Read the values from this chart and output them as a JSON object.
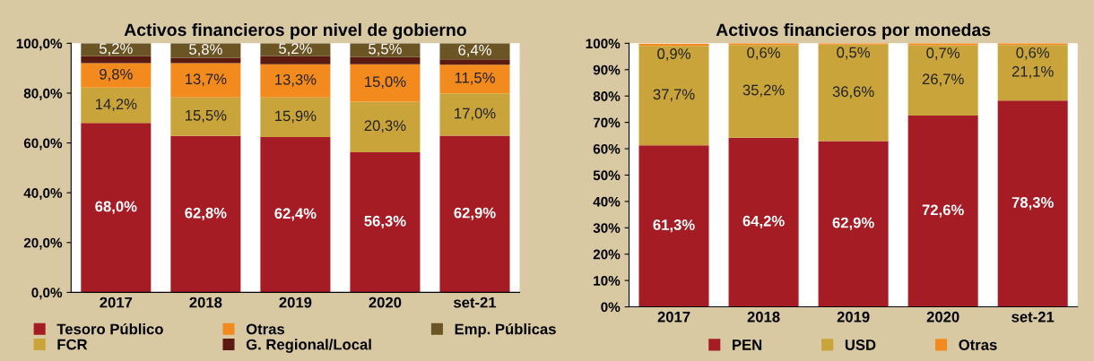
{
  "chart_data": [
    {
      "type": "bar",
      "title": "Activos financieros por nivel de gobierno",
      "stacked": true,
      "categories": [
        "2017",
        "2018",
        "2019",
        "2020",
        "set-21"
      ],
      "ylim": [
        0,
        100
      ],
      "yticks": [
        {
          "value": 0,
          "label": "0,0%"
        },
        {
          "value": 20,
          "label": "20,0%"
        },
        {
          "value": 40,
          "label": "40,0%"
        },
        {
          "value": 60,
          "label": "60,0%"
        },
        {
          "value": 80,
          "label": "80,0%"
        },
        {
          "value": 100,
          "label": "100,0%"
        }
      ],
      "grid": false,
      "legend": "bottom",
      "series": [
        {
          "name": "Tesoro Público",
          "color": "#a51c24",
          "values": [
            68.0,
            62.8,
            62.4,
            56.3,
            62.9
          ],
          "value_labels": [
            "68,0%",
            "62,8%",
            "62,4%",
            "56,3%",
            "62,9%"
          ]
        },
        {
          "name": "FCR",
          "color": "#c9a43a",
          "values": [
            14.2,
            15.5,
            15.9,
            20.3,
            17.0
          ],
          "value_labels": [
            "14,2%",
            "15,5%",
            "15,9%",
            "20,3%",
            "17,0%"
          ]
        },
        {
          "name": "Otras",
          "color": "#f28a1e",
          "values": [
            9.8,
            13.7,
            13.3,
            15.0,
            11.5
          ],
          "value_labels": [
            "9,8%",
            "13,7%",
            "13,3%",
            "15,0%",
            "11,5%"
          ]
        },
        {
          "name": "G. Regional/Local",
          "color": "#5a1a10",
          "values": [
            2.8,
            2.2,
            3.2,
            2.9,
            2.2
          ],
          "value_labels": [
            null,
            null,
            null,
            null,
            null
          ]
        },
        {
          "name": "Emp. Públicas",
          "color": "#6b5524",
          "values": [
            5.2,
            5.8,
            5.2,
            5.5,
            6.4
          ],
          "value_labels": [
            "5,2%",
            "5,8%",
            "5,2%",
            "5,5%",
            "6,4%"
          ]
        }
      ]
    },
    {
      "type": "bar",
      "title": "Activos financieros por monedas",
      "stacked": true,
      "categories": [
        "2017",
        "2018",
        "2019",
        "2020",
        "set-21"
      ],
      "ylim": [
        0,
        100
      ],
      "yticks": [
        {
          "value": 0,
          "label": "0%"
        },
        {
          "value": 10,
          "label": "10%"
        },
        {
          "value": 20,
          "label": "20%"
        },
        {
          "value": 30,
          "label": "30%"
        },
        {
          "value": 40,
          "label": "40%"
        },
        {
          "value": 50,
          "label": "50%"
        },
        {
          "value": 60,
          "label": "60%"
        },
        {
          "value": 70,
          "label": "70%"
        },
        {
          "value": 80,
          "label": "80%"
        },
        {
          "value": 90,
          "label": "90%"
        },
        {
          "value": 100,
          "label": "100%"
        }
      ],
      "grid": false,
      "legend": "bottom",
      "series": [
        {
          "name": "PEN",
          "color": "#a51c24",
          "values": [
            61.3,
            64.2,
            62.9,
            72.6,
            78.3
          ],
          "value_labels": [
            "61,3%",
            "64,2%",
            "62,9%",
            "72,6%",
            "78,3%"
          ]
        },
        {
          "name": "USD",
          "color": "#c9a43a",
          "values": [
            37.7,
            35.2,
            36.6,
            26.7,
            21.1
          ],
          "value_labels": [
            "37,7%",
            "35,2%",
            "36,6%",
            "26,7%",
            "21,1%"
          ]
        },
        {
          "name": "Otras",
          "color": "#f28a1e",
          "values": [
            0.9,
            0.6,
            0.5,
            0.7,
            0.6
          ],
          "value_labels": [
            "0,9%",
            "0,6%",
            "0,5%",
            "0,7%",
            "0,6%"
          ]
        }
      ]
    }
  ]
}
